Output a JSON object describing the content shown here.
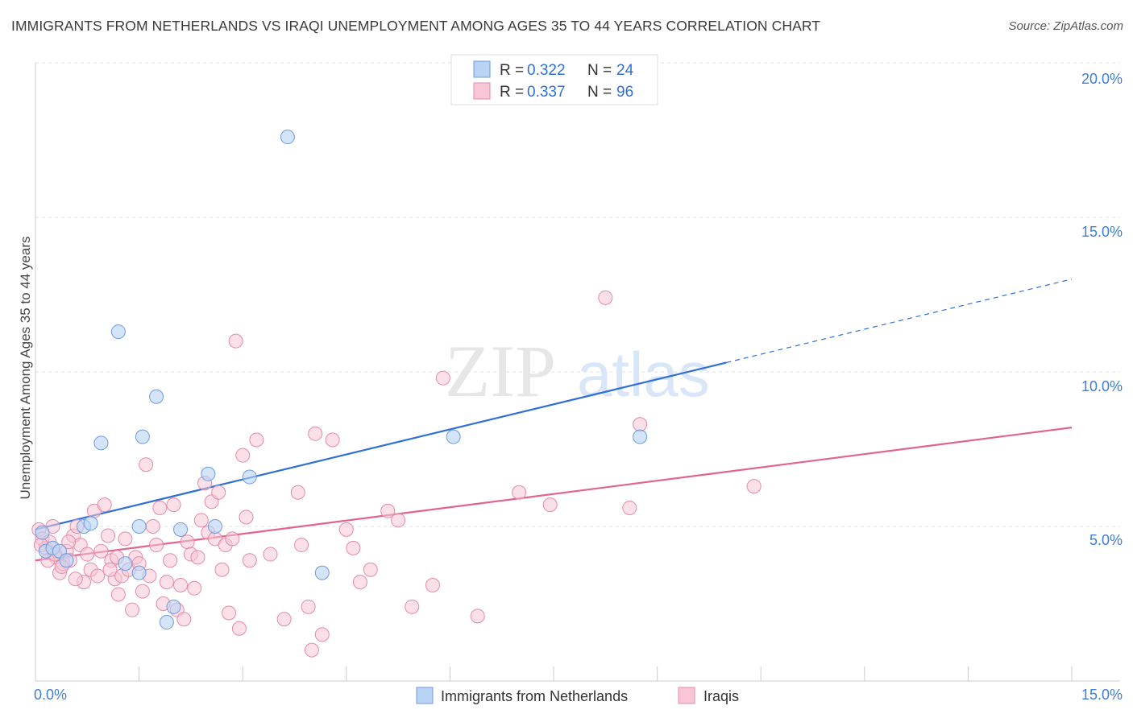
{
  "title": "IMMIGRANTS FROM NETHERLANDS VS IRAQI UNEMPLOYMENT AMONG AGES 35 TO 44 YEARS CORRELATION CHART",
  "source": "Source: ZipAtlas.com",
  "watermark": {
    "zip": "ZIP",
    "atlas": "atlas"
  },
  "legend": {
    "rows": [
      {
        "r_label": "R =",
        "r_value": "0.322",
        "n_label": "N =",
        "n_value": "24",
        "color": "#a9c8f2",
        "stroke": "#6f9be0"
      },
      {
        "r_label": "R =",
        "r_value": "0.337",
        "n_label": "N =",
        "n_value": "96",
        "color": "#f7bfd0",
        "stroke": "#e58aa8"
      }
    ]
  },
  "colors": {
    "blue_fill": "#b9d3f5",
    "blue_stroke": "#6f9be0",
    "blue_line": "#2f6fd6",
    "pink_fill": "#f8c6d6",
    "pink_stroke": "#e58aa8",
    "pink_line": "#e0648e",
    "grid": "#e2e2e2",
    "axis_text": "#3e7dd8"
  },
  "chart_data": {
    "type": "scatter",
    "xlabel": "",
    "ylabel": "Unemployment Among Ages 35 to 44 years",
    "xlim": [
      0,
      15
    ],
    "ylim": [
      0,
      20
    ],
    "x_tick_labels": [
      "0.0%",
      "15.0%"
    ],
    "y_tick_labels": [
      "5.0%",
      "10.0%",
      "15.0%",
      "20.0%"
    ],
    "y_ticks": [
      5,
      10,
      15,
      20
    ],
    "series": [
      {
        "name": "Immigrants from Netherlands",
        "points": [
          [
            0.1,
            4.8
          ],
          [
            0.15,
            4.2
          ],
          [
            0.25,
            4.3
          ],
          [
            0.35,
            4.2
          ],
          [
            0.45,
            3.9
          ],
          [
            0.7,
            5.0
          ],
          [
            0.8,
            5.1
          ],
          [
            0.95,
            7.7
          ],
          [
            1.2,
            11.3
          ],
          [
            1.3,
            3.8
          ],
          [
            1.5,
            3.5
          ],
          [
            1.5,
            5.0
          ],
          [
            1.55,
            7.9
          ],
          [
            1.75,
            9.2
          ],
          [
            1.9,
            1.9
          ],
          [
            2.0,
            2.4
          ],
          [
            2.1,
            4.9
          ],
          [
            2.5,
            6.7
          ],
          [
            2.6,
            5.0
          ],
          [
            3.1,
            6.6
          ],
          [
            3.65,
            17.6
          ],
          [
            4.15,
            3.5
          ],
          [
            6.05,
            7.9
          ],
          [
            8.75,
            7.9
          ]
        ],
        "trend": {
          "x0": 0,
          "y0": 4.9,
          "x1": 10.0,
          "y1": 10.3,
          "dash_to_x": 15,
          "dash_to_y": 13.0
        }
      },
      {
        "name": "Iraqis",
        "points": [
          [
            0.05,
            4.9
          ],
          [
            0.1,
            4.6
          ],
          [
            0.15,
            4.3
          ],
          [
            0.2,
            4.5
          ],
          [
            0.25,
            5.0
          ],
          [
            0.3,
            4.0
          ],
          [
            0.35,
            3.5
          ],
          [
            0.4,
            3.8
          ],
          [
            0.45,
            4.2
          ],
          [
            0.5,
            3.9
          ],
          [
            0.55,
            4.7
          ],
          [
            0.6,
            5.0
          ],
          [
            0.65,
            4.4
          ],
          [
            0.7,
            3.2
          ],
          [
            0.75,
            4.1
          ],
          [
            0.8,
            3.6
          ],
          [
            0.85,
            5.5
          ],
          [
            0.9,
            3.4
          ],
          [
            0.95,
            4.2
          ],
          [
            1.0,
            5.7
          ],
          [
            1.05,
            4.7
          ],
          [
            1.1,
            3.9
          ],
          [
            1.15,
            3.3
          ],
          [
            1.2,
            2.8
          ],
          [
            1.25,
            3.4
          ],
          [
            1.3,
            4.6
          ],
          [
            1.35,
            3.6
          ],
          [
            1.4,
            2.3
          ],
          [
            1.45,
            4.0
          ],
          [
            1.5,
            3.8
          ],
          [
            1.55,
            2.9
          ],
          [
            1.6,
            7.0
          ],
          [
            1.65,
            3.4
          ],
          [
            1.7,
            5.0
          ],
          [
            1.75,
            4.4
          ],
          [
            1.8,
            5.6
          ],
          [
            1.85,
            2.5
          ],
          [
            1.9,
            3.2
          ],
          [
            1.95,
            3.9
          ],
          [
            2.0,
            5.7
          ],
          [
            2.05,
            2.3
          ],
          [
            2.1,
            3.1
          ],
          [
            2.15,
            2.0
          ],
          [
            2.2,
            4.5
          ],
          [
            2.25,
            4.1
          ],
          [
            2.3,
            3.0
          ],
          [
            2.35,
            4.0
          ],
          [
            2.4,
            5.2
          ],
          [
            2.45,
            6.4
          ],
          [
            2.5,
            4.8
          ],
          [
            2.55,
            5.8
          ],
          [
            2.6,
            4.6
          ],
          [
            2.65,
            6.1
          ],
          [
            2.7,
            3.6
          ],
          [
            2.75,
            4.4
          ],
          [
            2.8,
            2.2
          ],
          [
            2.85,
            4.6
          ],
          [
            2.9,
            11.0
          ],
          [
            2.95,
            1.7
          ],
          [
            3.0,
            7.3
          ],
          [
            3.05,
            5.3
          ],
          [
            3.1,
            3.9
          ],
          [
            3.2,
            7.8
          ],
          [
            3.4,
            4.1
          ],
          [
            3.6,
            2.0
          ],
          [
            3.8,
            6.1
          ],
          [
            3.85,
            4.4
          ],
          [
            3.95,
            2.4
          ],
          [
            4.0,
            1.0
          ],
          [
            4.05,
            8.0
          ],
          [
            4.15,
            1.5
          ],
          [
            4.3,
            7.8
          ],
          [
            4.5,
            4.9
          ],
          [
            4.6,
            4.3
          ],
          [
            4.7,
            3.2
          ],
          [
            4.85,
            3.6
          ],
          [
            5.1,
            5.5
          ],
          [
            5.25,
            5.2
          ],
          [
            5.45,
            2.4
          ],
          [
            5.75,
            3.1
          ],
          [
            5.9,
            9.8
          ],
          [
            6.4,
            2.1
          ],
          [
            7.0,
            6.1
          ],
          [
            7.45,
            5.7
          ],
          [
            8.25,
            12.4
          ],
          [
            8.6,
            5.6
          ],
          [
            8.75,
            8.3
          ],
          [
            10.4,
            6.3
          ],
          [
            0.08,
            4.4
          ],
          [
            0.18,
            3.9
          ],
          [
            0.28,
            4.1
          ],
          [
            0.38,
            3.7
          ],
          [
            0.48,
            4.5
          ],
          [
            0.58,
            3.3
          ],
          [
            1.08,
            3.6
          ],
          [
            1.18,
            4.0
          ]
        ],
        "trend": {
          "x0": 0,
          "y0": 3.9,
          "x1": 15,
          "y1": 8.2
        }
      }
    ]
  },
  "bottom_legend": [
    {
      "label": "Immigrants from Netherlands"
    },
    {
      "label": "Iraqis"
    }
  ]
}
